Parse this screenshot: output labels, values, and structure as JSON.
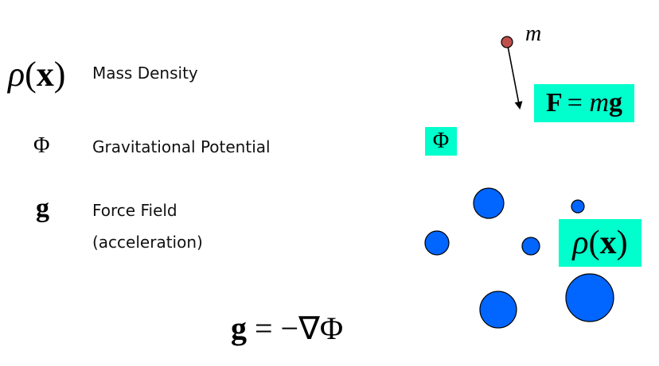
{
  "legend": {
    "rho_symbol": {
      "fn": "ρ",
      "open": "(",
      "var": "x",
      "close": ")"
    },
    "rho_label": "Mass Density",
    "phi_symbol": "Φ",
    "phi_label": "Gravitational Potential",
    "g_symbol": "g",
    "g_label_line1": "Force Field",
    "g_label_line2": "(acceleration)"
  },
  "equation": {
    "g": "g",
    "rest": "= −∇Φ"
  },
  "diagram": {
    "mass_label": "m",
    "force_box": {
      "F": "F",
      "eq": "= ",
      "m": "m",
      "g": "g"
    },
    "phi_box": "Φ",
    "rho_box": {
      "fn": "ρ",
      "open": "(",
      "var": "x",
      "close": ")"
    },
    "colors": {
      "highlight": "#00ffcc",
      "body_fill": "#0066ff",
      "test_mass_fill": "#c0504d"
    }
  }
}
